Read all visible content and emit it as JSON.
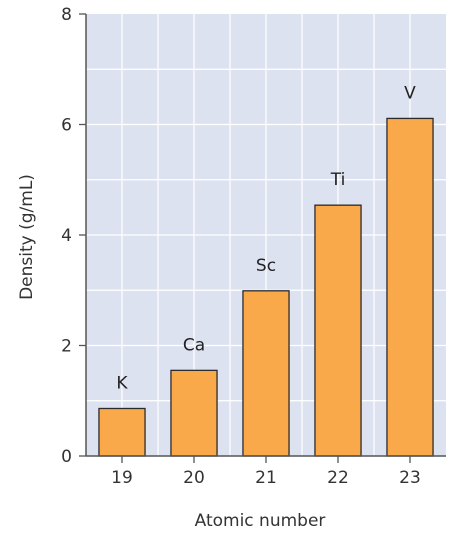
{
  "chart_data": {
    "type": "bar",
    "categories": [
      "19",
      "20",
      "21",
      "22",
      "23"
    ],
    "values": [
      0.86,
      1.55,
      2.99,
      4.54,
      6.11
    ],
    "bar_labels": [
      "K",
      "Ca",
      "Sc",
      "Ti",
      "V"
    ],
    "title": "",
    "xlabel": "Atomic number",
    "ylabel": "Density (g/mL)",
    "ylim": [
      0,
      8
    ],
    "yticks": [
      0,
      2,
      4,
      6,
      8
    ],
    "grid": true,
    "legend": "none",
    "colors": {
      "bar_fill": "#f9a94a",
      "bar_stroke": "#2b2b2b",
      "plot_background": "#dde2f0",
      "gridline": "#ffffff",
      "axis": "#555555"
    }
  }
}
